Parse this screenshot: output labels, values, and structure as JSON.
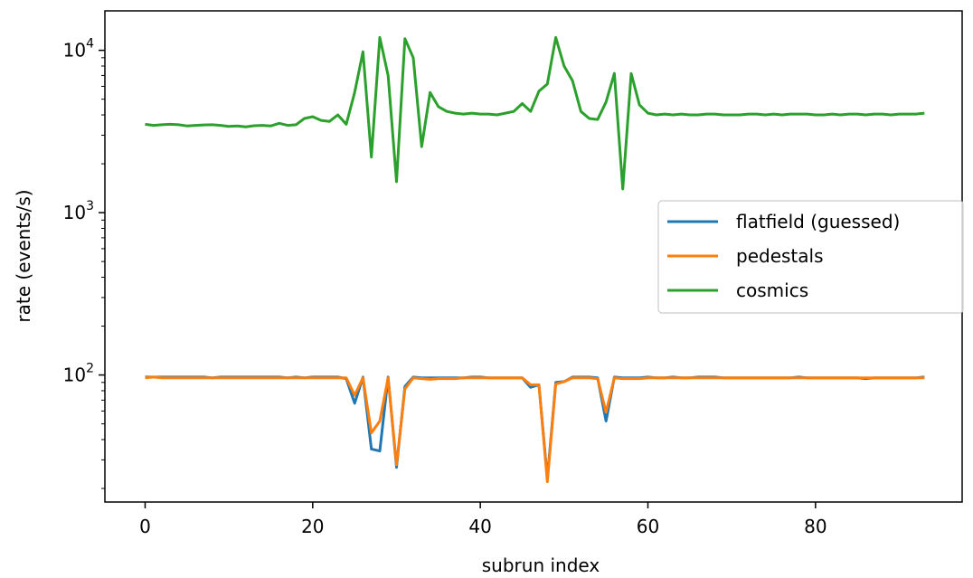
{
  "chart_data": {
    "type": "line",
    "title": "",
    "xlabel": "subrun index",
    "ylabel": "rate (events/s)",
    "yscale": "log",
    "xlim": [
      -4.8,
      97.5
    ],
    "ylim": [
      16.5,
      17500
    ],
    "grid": false,
    "legend_placement": "center-right",
    "x_ticks": [
      0,
      20,
      40,
      60,
      80
    ],
    "y_ticks": [
      {
        "value": 100,
        "base": "10",
        "exp": "2"
      },
      {
        "value": 1000,
        "base": "10",
        "exp": "3"
      },
      {
        "value": 10000,
        "base": "10",
        "exp": "4"
      }
    ],
    "x": [
      0,
      1,
      2,
      3,
      4,
      5,
      6,
      7,
      8,
      9,
      10,
      11,
      12,
      13,
      14,
      15,
      16,
      17,
      18,
      19,
      20,
      21,
      22,
      23,
      24,
      25,
      26,
      27,
      28,
      29,
      30,
      31,
      32,
      33,
      34,
      35,
      36,
      37,
      38,
      39,
      40,
      41,
      42,
      43,
      44,
      45,
      46,
      47,
      48,
      49,
      50,
      51,
      52,
      53,
      54,
      55,
      56,
      57,
      58,
      59,
      60,
      61,
      62,
      63,
      64,
      65,
      66,
      67,
      68,
      69,
      70,
      71,
      72,
      73,
      74,
      75,
      76,
      77,
      78,
      79,
      80,
      81,
      82,
      83,
      84,
      85,
      86,
      87,
      88,
      89,
      90,
      91,
      92,
      93
    ],
    "series": [
      {
        "name": "flatfield (guessed)",
        "color": "#1f77b4",
        "values": [
          97,
          97,
          97,
          97,
          97,
          97,
          97,
          97,
          96,
          97,
          97,
          97,
          97,
          97,
          97,
          97,
          97,
          96,
          97,
          96,
          97,
          97,
          97,
          97,
          95,
          67,
          97,
          35,
          34,
          97,
          27,
          85,
          97,
          96,
          96,
          96,
          96,
          96,
          96,
          97,
          97,
          96,
          96,
          96,
          96,
          96,
          84,
          87,
          23,
          90,
          91,
          97,
          97,
          97,
          96,
          52,
          97,
          96,
          96,
          96,
          97,
          96,
          96,
          97,
          96,
          96,
          97,
          97,
          97,
          96,
          96,
          96,
          96,
          96,
          96,
          96,
          96,
          96,
          97,
          96,
          96,
          96,
          96,
          96,
          96,
          96,
          95,
          96,
          96,
          96,
          96,
          96,
          96,
          97
        ]
      },
      {
        "name": "pedestals",
        "color": "#ff7f0e",
        "values": [
          96,
          97,
          96,
          96,
          96,
          96,
          96,
          96,
          96,
          96,
          96,
          96,
          96,
          96,
          96,
          96,
          96,
          96,
          96,
          96,
          96,
          96,
          96,
          96,
          96,
          75,
          96,
          44,
          52,
          96,
          28,
          82,
          96,
          95,
          94,
          95,
          95,
          95,
          96,
          96,
          96,
          96,
          96,
          96,
          96,
          96,
          87,
          87,
          22,
          88,
          91,
          96,
          96,
          96,
          95,
          59,
          96,
          95,
          95,
          95,
          96,
          96,
          96,
          96,
          96,
          96,
          96,
          96,
          96,
          96,
          96,
          96,
          96,
          96,
          96,
          96,
          96,
          96,
          96,
          96,
          96,
          96,
          96,
          96,
          96,
          96,
          96,
          96,
          96,
          96,
          96,
          96,
          96,
          96
        ]
      },
      {
        "name": "cosmics",
        "color": "#2ca02c",
        "values": [
          3500,
          3450,
          3480,
          3500,
          3480,
          3420,
          3450,
          3470,
          3480,
          3450,
          3400,
          3420,
          3380,
          3430,
          3450,
          3420,
          3550,
          3450,
          3480,
          3800,
          3900,
          3700,
          3650,
          4000,
          3500,
          5500,
          9800,
          2200,
          12000,
          7000,
          1550,
          11800,
          9000,
          2550,
          5500,
          4500,
          4200,
          4100,
          4050,
          4100,
          4050,
          4050,
          4000,
          4100,
          4200,
          4700,
          4200,
          5600,
          6200,
          12000,
          8000,
          6500,
          4200,
          3800,
          3750,
          4800,
          7200,
          1400,
          7200,
          4600,
          4100,
          4000,
          4050,
          4000,
          4050,
          4000,
          4000,
          4050,
          4050,
          4000,
          4000,
          4000,
          4050,
          4050,
          4000,
          4050,
          4000,
          4050,
          4050,
          4050,
          4000,
          4000,
          4050,
          4000,
          4050,
          4050,
          4000,
          4050,
          4050,
          4000,
          4050,
          4050,
          4050,
          4100
        ]
      }
    ]
  }
}
